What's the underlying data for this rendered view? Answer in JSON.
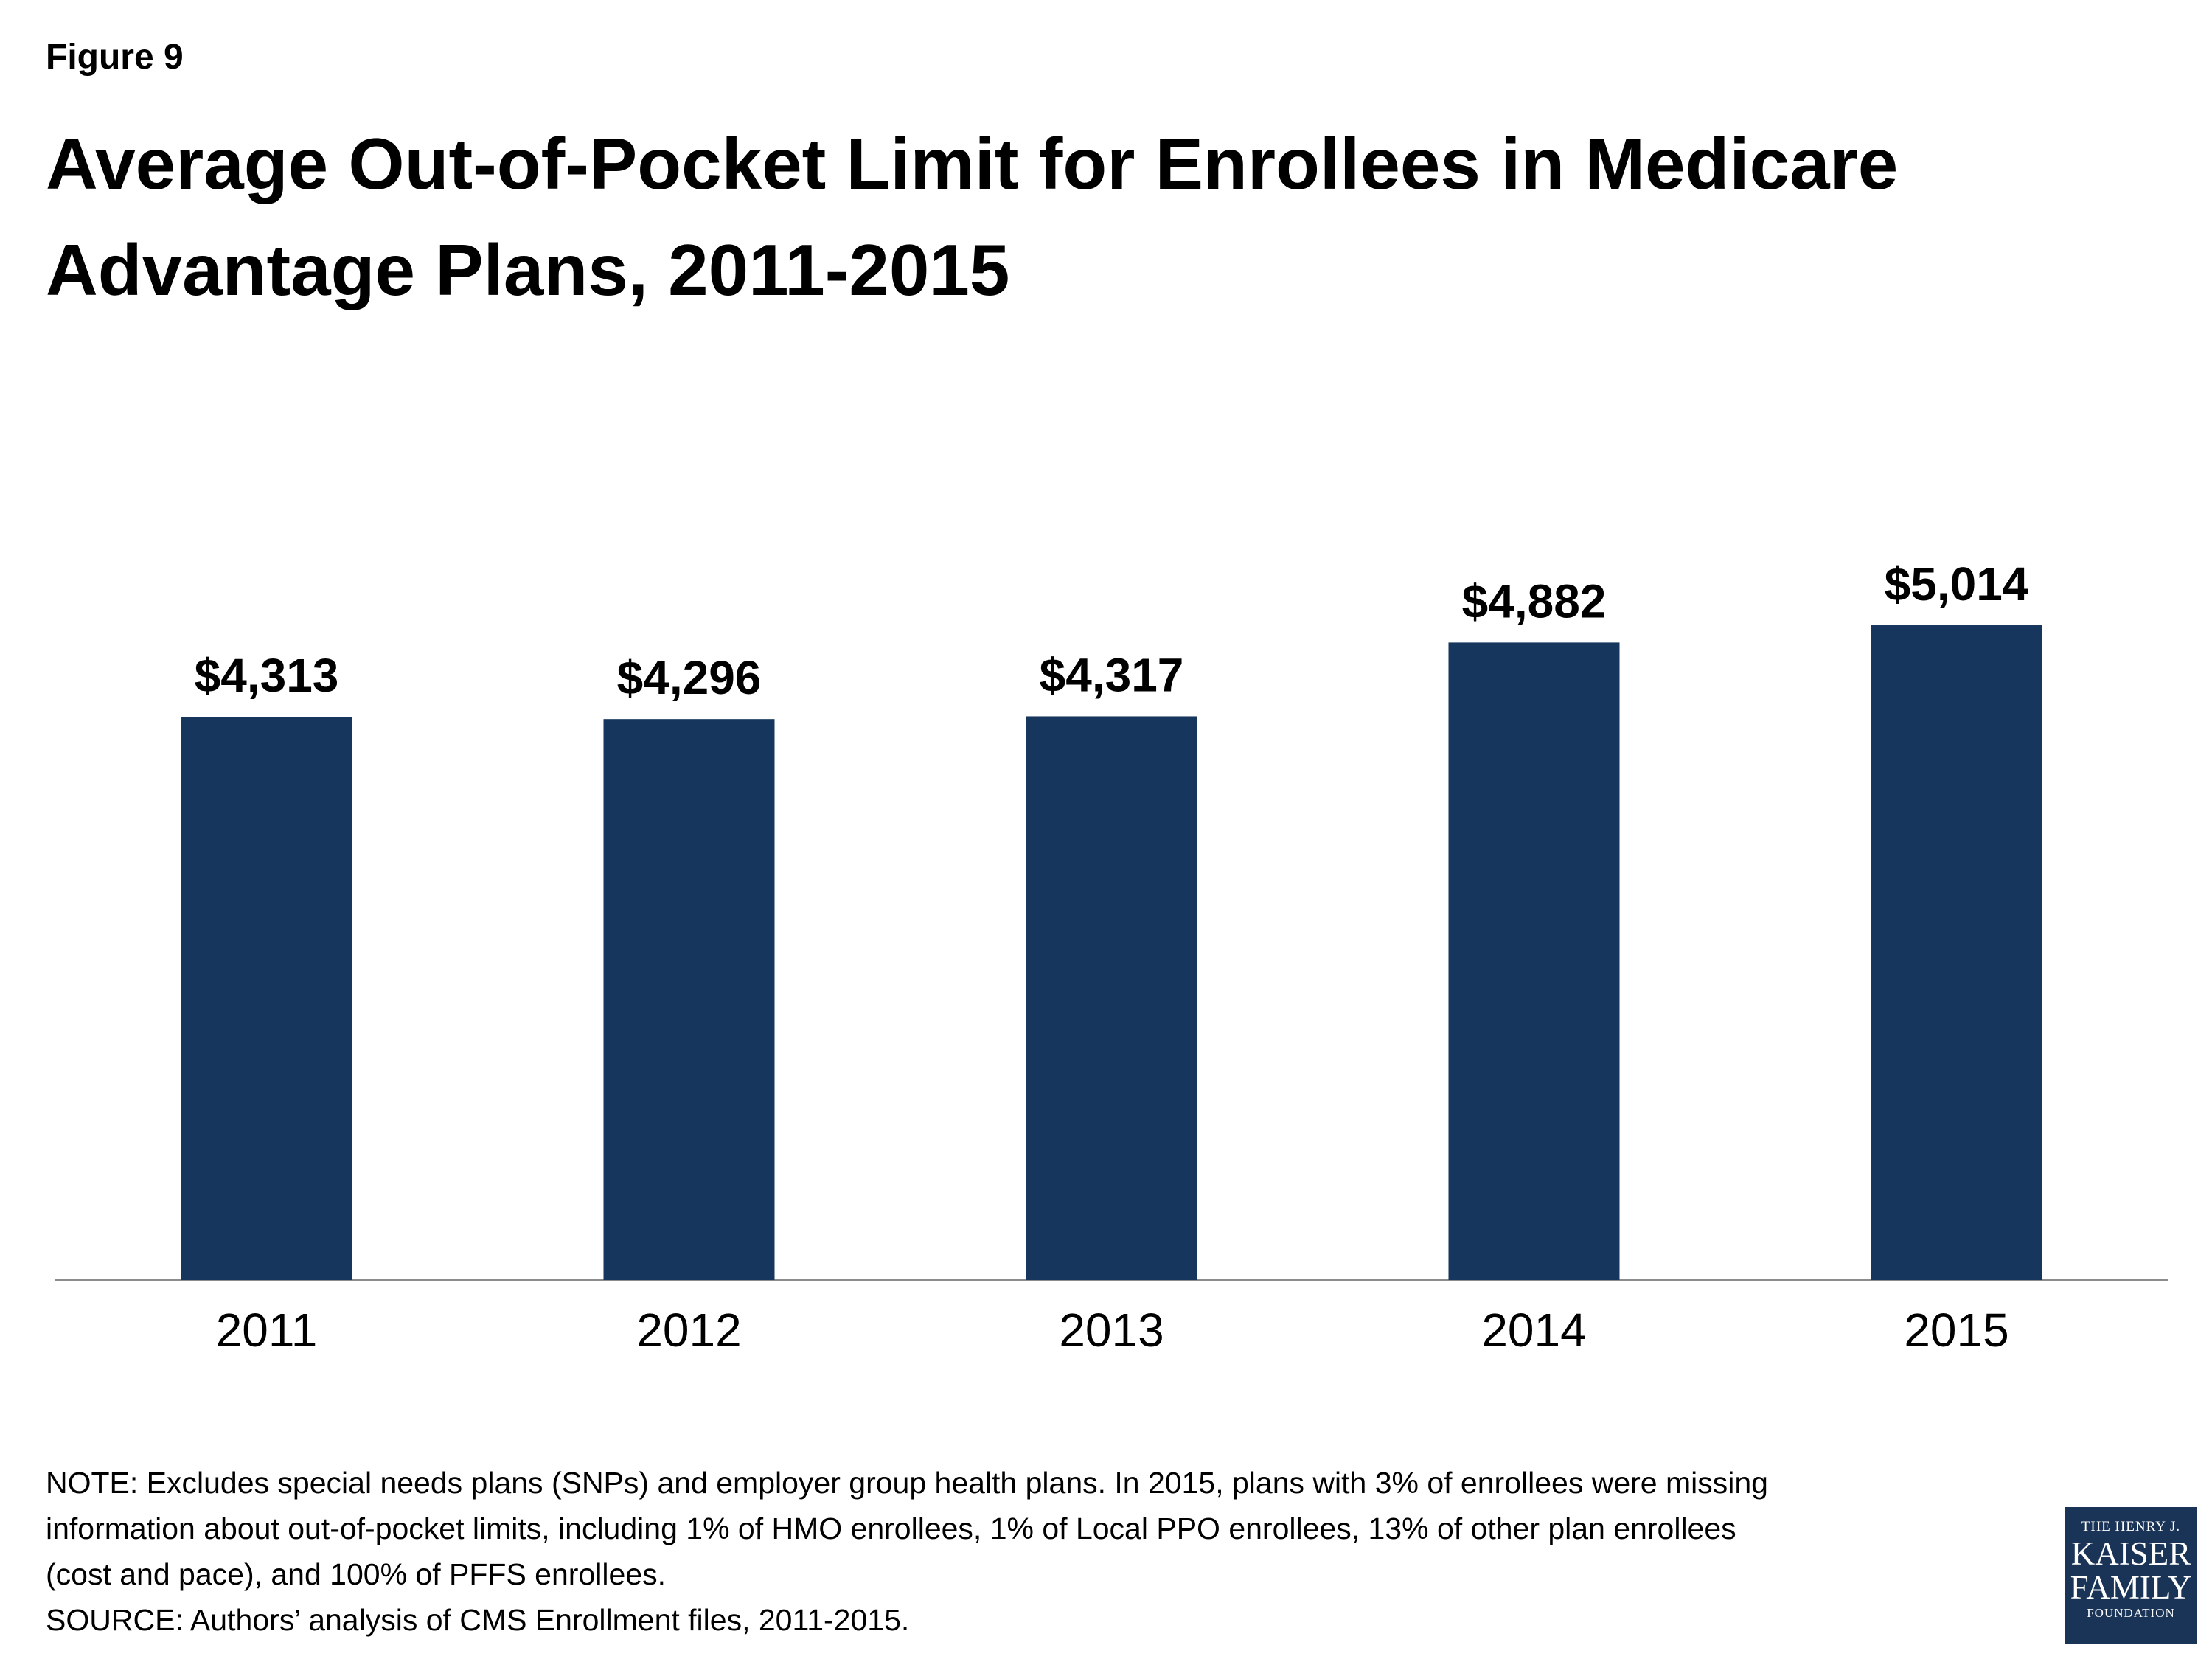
{
  "figure_label": "Figure 9",
  "title": "Average Out-of-Pocket Limit for Enrollees in Medicare Advantage Plans, 2011-2015",
  "chart_data": {
    "type": "bar",
    "title": "Average Out-of-Pocket Limit for Enrollees in Medicare Advantage Plans, 2011-2015",
    "categories": [
      "2011",
      "2012",
      "2013",
      "2014",
      "2015"
    ],
    "values": [
      4313,
      4296,
      4317,
      4882,
      5014
    ],
    "data_labels": [
      "$4,313",
      "$4,296",
      "$4,317",
      "$4,882",
      "$5,014"
    ],
    "xlabel": "",
    "ylabel": "",
    "ylim": [
      0,
      6000
    ],
    "grid": false,
    "bar_color": "#17365d"
  },
  "footer": {
    "note_lines": [
      "NOTE:  Excludes special needs plans (SNPs) and employer group health plans. In 2015, plans with 3% of enrollees were missing",
      "information about out-of-pocket limits, including 1% of HMO enrollees, 1% of Local PPO enrollees, 13% of other plan enrollees",
      "(cost and pace), and 100% of PFFS enrollees."
    ],
    "source": "SOURCE:  Authors’ analysis of CMS Enrollment files, 2011-2015."
  },
  "logo": {
    "top": "THE HENRY J.",
    "line1": "KAISER",
    "line2": "FAMILY",
    "bottom": "FOUNDATION"
  }
}
